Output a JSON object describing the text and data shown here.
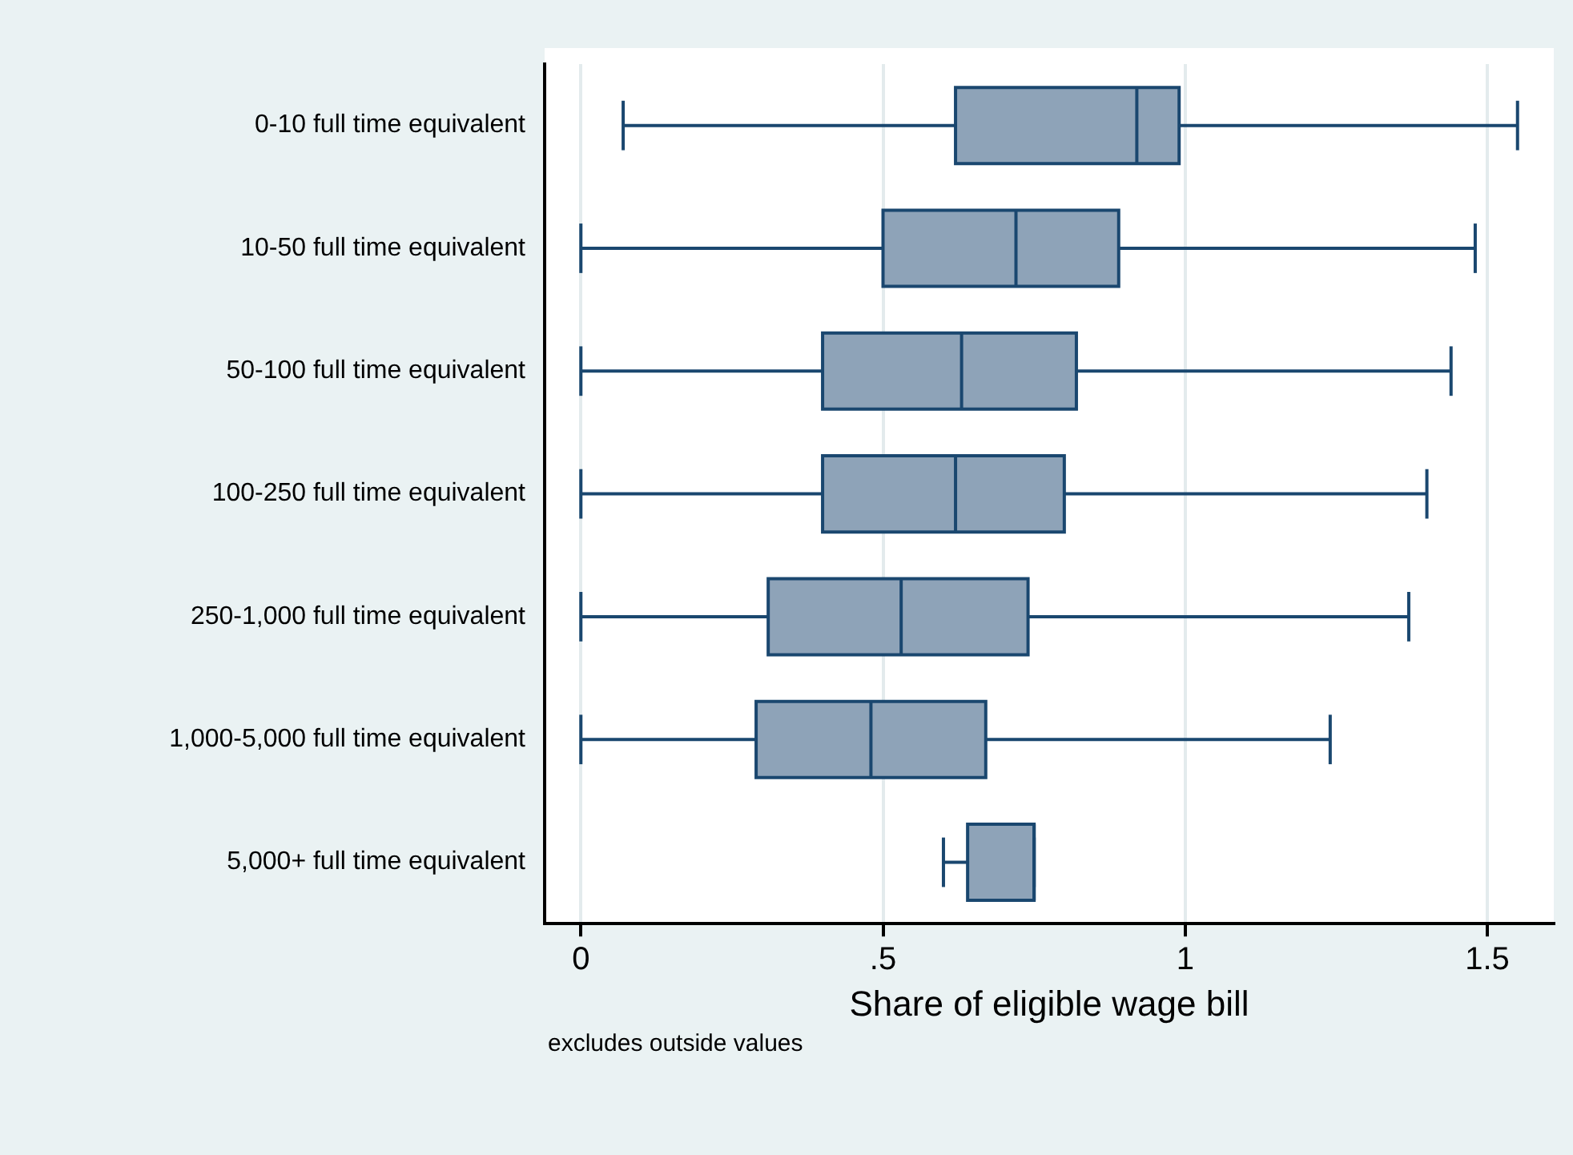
{
  "chart_data": {
    "type": "box",
    "orientation": "horizontal",
    "xlabel": "Share of eligible wage bill",
    "annotations": [
      "excludes outside values"
    ],
    "categories": [
      "0-10 full time equivalent",
      "10-50 full time equivalent",
      "50-100 full time equivalent",
      "100-250 full time equivalent",
      "250-1,000 full time equivalent",
      "1,000-5,000 full time equivalent",
      "5,000+ full time equivalent"
    ],
    "color": "#8ea3b8",
    "boxes": [
      {
        "low": 0.07,
        "q1": 0.62,
        "median": 0.92,
        "q3": 0.99,
        "high": 1.55
      },
      {
        "low": 0,
        "q1": 0.5,
        "median": 0.72,
        "q3": 0.89,
        "high": 1.48
      },
      {
        "low": 0,
        "q1": 0.4,
        "median": 0.63,
        "q3": 0.82,
        "high": 1.44
      },
      {
        "low": 0,
        "q1": 0.4,
        "median": 0.62,
        "q3": 0.8,
        "high": 1.4
      },
      {
        "low": 0,
        "q1": 0.31,
        "median": 0.53,
        "q3": 0.74,
        "high": 1.37
      },
      {
        "low": 0,
        "q1": 0.29,
        "median": 0.48,
        "q3": 0.67,
        "high": 1.24
      },
      {
        "low": 0.6,
        "q1": 0.64,
        "median": 0.75,
        "q3": 0.75,
        "high": 0.75
      }
    ],
    "xlim": [
      -0.06,
      1.61
    ],
    "xticks": [
      {
        "value": 0,
        "label": "0"
      },
      {
        "value": 0.5,
        "label": ".5"
      },
      {
        "value": 1,
        "label": "1"
      },
      {
        "value": 1.5,
        "label": "1.5"
      }
    ],
    "grid": "x",
    "legend": false
  }
}
